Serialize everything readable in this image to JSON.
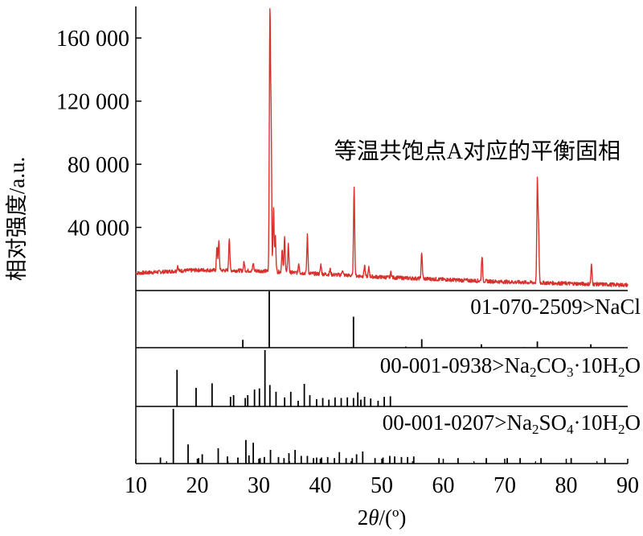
{
  "chart_data": {
    "type": "line",
    "xlabel": "2θ/(º)",
    "ylabel": "相对强度/a.u.",
    "xlim": [
      10,
      90
    ],
    "ylim": [
      0,
      180000
    ],
    "x_ticks": [
      "10",
      "20",
      "30",
      "40",
      "50",
      "60",
      "70",
      "80",
      "90"
    ],
    "y_ticks": [
      {
        "value": 40000,
        "label": "40 000"
      },
      {
        "value": 80000,
        "label": "80 000"
      },
      {
        "value": 120000,
        "label": "120 000"
      },
      {
        "value": 160000,
        "label": "160 000"
      }
    ],
    "series": [
      {
        "name": "等温共饱点A对应的平衡固相",
        "color": "#d9302c",
        "baseline": [
          [
            10,
            11000
          ],
          [
            20,
            13000
          ],
          [
            30,
            12500
          ],
          [
            40,
            10500
          ],
          [
            50,
            8500
          ],
          [
            60,
            7000
          ],
          [
            70,
            5500
          ],
          [
            80,
            4500
          ],
          [
            90,
            3500
          ]
        ],
        "peaks": [
          [
            16.8,
            3500
          ],
          [
            23.2,
            15000
          ],
          [
            23.5,
            18000
          ],
          [
            25.2,
            21000
          ],
          [
            27.6,
            5500
          ],
          [
            29.1,
            4500
          ],
          [
            31.8,
            159000
          ],
          [
            32.0,
            92000
          ],
          [
            32.4,
            41000
          ],
          [
            32.7,
            22000
          ],
          [
            33.8,
            15000
          ],
          [
            34.2,
            22000
          ],
          [
            34.8,
            18000
          ],
          [
            36.5,
            6000
          ],
          [
            37.9,
            24000
          ],
          [
            40.1,
            6000
          ],
          [
            41.6,
            3500
          ],
          [
            43.6,
            3500
          ],
          [
            45.5,
            57000
          ],
          [
            47.2,
            7000
          ],
          [
            47.9,
            5500
          ],
          [
            51.5,
            3500
          ],
          [
            56.5,
            17000
          ],
          [
            66.3,
            16000
          ],
          [
            75.3,
            63000
          ],
          [
            75.5,
            32000
          ],
          [
            84.1,
            12000
          ]
        ]
      }
    ],
    "reference_patterns": [
      {
        "label": "01-070-2509>NaCl",
        "sticks": [
          [
            27.4,
            14
          ],
          [
            31.7,
            100
          ],
          [
            45.4,
            55
          ],
          [
            53.9,
            2
          ],
          [
            56.5,
            15
          ],
          [
            66.2,
            6
          ],
          [
            73.1,
            1
          ],
          [
            75.3,
            11
          ],
          [
            84.0,
            6
          ]
        ]
      },
      {
        "label": "00-001-0938>Na₂CO₃·10H₂O",
        "sticks": [
          [
            16.7,
            65
          ],
          [
            19.8,
            33
          ],
          [
            22.4,
            41
          ],
          [
            25.4,
            17
          ],
          [
            25.9,
            20
          ],
          [
            27.8,
            15
          ],
          [
            28.2,
            20
          ],
          [
            29.3,
            30
          ],
          [
            30.1,
            32
          ],
          [
            31.0,
            100
          ],
          [
            31.8,
            38
          ],
          [
            32.8,
            26
          ],
          [
            34.2,
            16
          ],
          [
            35.2,
            26
          ],
          [
            36.4,
            10
          ],
          [
            37.4,
            40
          ],
          [
            38.3,
            20
          ],
          [
            39.4,
            13
          ],
          [
            40.4,
            15
          ],
          [
            41.4,
            12
          ],
          [
            42.4,
            16
          ],
          [
            43.4,
            15
          ],
          [
            44.4,
            16
          ],
          [
            45.4,
            15
          ],
          [
            46.1,
            25
          ],
          [
            46.6,
            12
          ],
          [
            47.2,
            17
          ],
          [
            48.2,
            14
          ],
          [
            49.4,
            10
          ],
          [
            50.4,
            17
          ],
          [
            51.4,
            18
          ]
        ]
      },
      {
        "label": "00-001-0207>Na₂SO₄·10H₂O",
        "sticks": [
          [
            14.0,
            11
          ],
          [
            16.1,
            100
          ],
          [
            18.5,
            35
          ],
          [
            20.2,
            10
          ],
          [
            20.8,
            17
          ],
          [
            23.4,
            28
          ],
          [
            24.9,
            13
          ],
          [
            26.6,
            11
          ],
          [
            27.9,
            43
          ],
          [
            28.4,
            15
          ],
          [
            29.1,
            38
          ],
          [
            30.2,
            10
          ],
          [
            30.9,
            12
          ],
          [
            31.9,
            25
          ],
          [
            33.2,
            12
          ],
          [
            34.1,
            10
          ],
          [
            34.9,
            19
          ],
          [
            35.9,
            25
          ],
          [
            36.9,
            14
          ],
          [
            37.9,
            14
          ],
          [
            38.9,
            10
          ],
          [
            39.4,
            11
          ],
          [
            40.2,
            11
          ],
          [
            41.2,
            12
          ],
          [
            42.3,
            10
          ],
          [
            43.1,
            21
          ],
          [
            44.2,
            10
          ],
          [
            45.2,
            10
          ],
          [
            45.9,
            17
          ],
          [
            46.9,
            22
          ],
          [
            48.9,
            10
          ],
          [
            50.2,
            11
          ],
          [
            51.3,
            14
          ],
          [
            52.1,
            13
          ],
          [
            53.2,
            12
          ],
          [
            54.2,
            12
          ],
          [
            55.2,
            13
          ],
          [
            59.3,
            10
          ],
          [
            62.4,
            10
          ],
          [
            67.0,
            10
          ],
          [
            70.4,
            10
          ],
          [
            72.5,
            10
          ],
          [
            75.9,
            10
          ],
          [
            80.8,
            10
          ],
          [
            86.3,
            10
          ]
        ]
      }
    ]
  }
}
